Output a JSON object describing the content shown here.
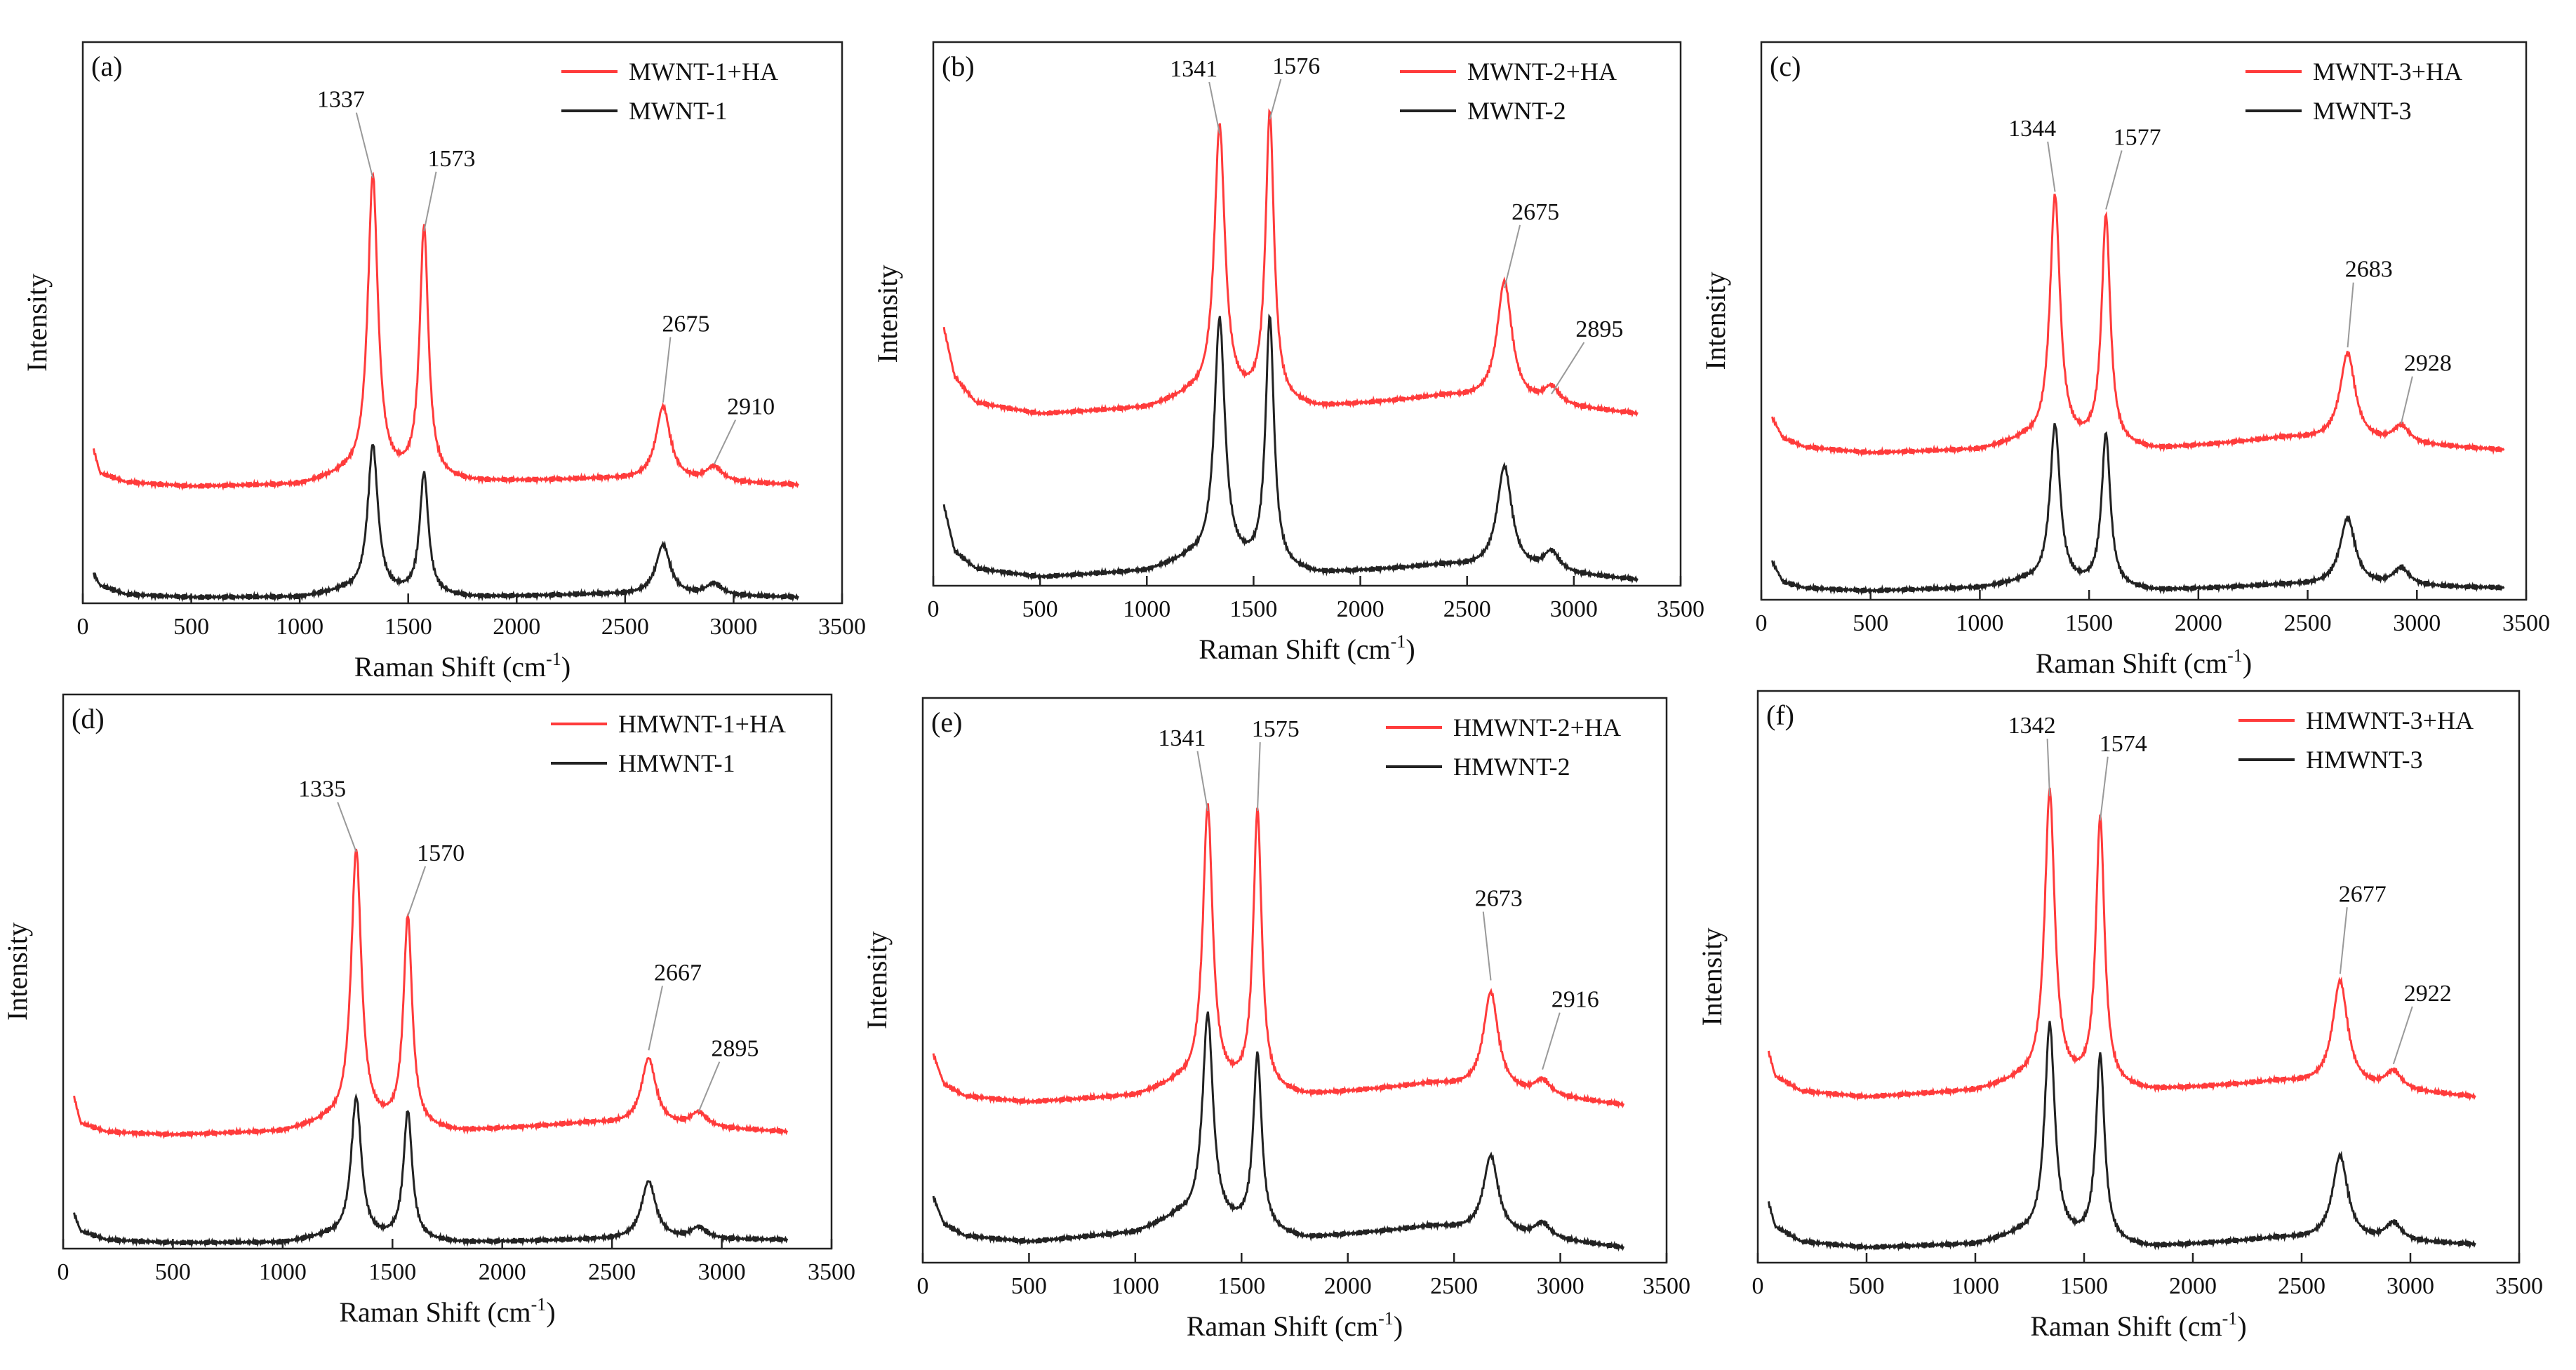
{
  "colors": {
    "axis": "#222222",
    "ha_line": "#ff3b3b",
    "base_line": "#222222",
    "leader": "#999999"
  },
  "chart_data": [
    {
      "type": "line",
      "panel_label": "(a)",
      "xlabel": "Raman Shift (cm",
      "xlabel_sup": "-1",
      "xlabel_close": ")",
      "ylabel": "Intensity",
      "xlim": [
        0,
        3500
      ],
      "xticks": [
        0,
        500,
        1000,
        1500,
        2000,
        2500,
        3000,
        3500
      ],
      "x_range": [
        50,
        3300
      ],
      "series": [
        {
          "name": "MWNT-1+HA",
          "role": "ha",
          "baseline": [
            [
              50,
              0.52
            ],
            [
              80,
              0.44
            ],
            [
              200,
              0.41
            ],
            [
              500,
              0.395
            ],
            [
              1000,
              0.4
            ],
            [
              1200,
              0.43
            ],
            [
              1800,
              0.41
            ],
            [
              2400,
              0.42
            ],
            [
              3300,
              0.4
            ]
          ],
          "peaks": [
            {
              "x": 1337,
              "h": 1.02,
              "w": 28
            },
            {
              "x": 1573,
              "h": 0.85,
              "w": 24
            },
            {
              "x": 2675,
              "h": 0.25,
              "w": 40
            },
            {
              "x": 2910,
              "h": 0.05,
              "w": 45
            }
          ]
        },
        {
          "name": "MWNT-1",
          "role": "base",
          "baseline": [
            [
              50,
              0.1
            ],
            [
              80,
              0.06
            ],
            [
              200,
              0.03
            ],
            [
              500,
              0.02
            ],
            [
              1000,
              0.02
            ],
            [
              1200,
              0.04
            ],
            [
              1800,
              0.02
            ],
            [
              2400,
              0.03
            ],
            [
              3300,
              0.02
            ]
          ],
          "peaks": [
            {
              "x": 1337,
              "h": 0.5,
              "w": 28
            },
            {
              "x": 1573,
              "h": 0.41,
              "w": 24
            },
            {
              "x": 2675,
              "h": 0.17,
              "w": 40
            },
            {
              "x": 2910,
              "h": 0.04,
              "w": 45
            }
          ]
        }
      ],
      "annotations": [
        {
          "text": "1337",
          "x": 1337,
          "y": 1.44,
          "tx": 1190,
          "ty": 1.68
        },
        {
          "text": "1573",
          "x": 1573,
          "y": 1.26,
          "tx": 1700,
          "ty": 1.48
        },
        {
          "text": "2675",
          "x": 2675,
          "y": 0.68,
          "tx": 2780,
          "ty": 0.92
        },
        {
          "text": "2910",
          "x": 2910,
          "y": 0.47,
          "tx": 3080,
          "ty": 0.64
        }
      ]
    },
    {
      "type": "line",
      "panel_label": "(b)",
      "xlabel": "Raman Shift (cm",
      "xlabel_sup": "-1",
      "xlabel_close": ")",
      "ylabel": "Intensity",
      "xlim": [
        0,
        3500
      ],
      "xticks": [
        0,
        500,
        1000,
        1500,
        2000,
        2500,
        3000,
        3500
      ],
      "x_range": [
        50,
        3300
      ],
      "series": [
        {
          "name": "MWNT-2+HA",
          "role": "ha",
          "baseline": [
            [
              50,
              0.9
            ],
            [
              100,
              0.73
            ],
            [
              200,
              0.64
            ],
            [
              500,
              0.6
            ],
            [
              1000,
              0.62
            ],
            [
              1200,
              0.66
            ],
            [
              1800,
              0.62
            ],
            [
              2400,
              0.66
            ],
            [
              3300,
              0.6
            ]
          ],
          "peaks": [
            {
              "x": 1341,
              "h": 0.95,
              "w": 30
            },
            {
              "x": 1576,
              "h": 1.01,
              "w": 24
            },
            {
              "x": 2675,
              "h": 0.42,
              "w": 42
            },
            {
              "x": 2895,
              "h": 0.06,
              "w": 45
            }
          ]
        },
        {
          "name": "MWNT-2",
          "role": "base",
          "baseline": [
            [
              50,
              0.28
            ],
            [
              100,
              0.12
            ],
            [
              200,
              0.06
            ],
            [
              500,
              0.03
            ],
            [
              1000,
              0.05
            ],
            [
              1200,
              0.09
            ],
            [
              1800,
              0.04
            ],
            [
              2400,
              0.07
            ],
            [
              3300,
              0.02
            ]
          ],
          "peaks": [
            {
              "x": 1341,
              "h": 0.85,
              "w": 30
            },
            {
              "x": 1576,
              "h": 0.87,
              "w": 24
            },
            {
              "x": 2675,
              "h": 0.36,
              "w": 42
            },
            {
              "x": 2895,
              "h": 0.07,
              "w": 45
            }
          ]
        }
      ],
      "annotations": [
        {
          "text": "1341",
          "x": 1341,
          "y": 1.58,
          "tx": 1220,
          "ty": 1.78
        },
        {
          "text": "1576",
          "x": 1576,
          "y": 1.63,
          "tx": 1700,
          "ty": 1.79
        },
        {
          "text": "2675",
          "x": 2675,
          "y": 1.04,
          "tx": 2820,
          "ty": 1.28
        },
        {
          "text": "2895",
          "x": 2895,
          "y": 0.67,
          "tx": 3120,
          "ty": 0.87
        }
      ]
    },
    {
      "type": "line",
      "panel_label": "(c)",
      "xlabel": "Raman Shift (cm",
      "xlabel_sup": "-1",
      "xlabel_close": ")",
      "ylabel": "Intensity",
      "xlim": [
        0,
        3500
      ],
      "xticks": [
        0,
        500,
        1000,
        1500,
        2000,
        2500,
        3000,
        3500
      ],
      "x_range": [
        50,
        3400
      ],
      "series": [
        {
          "name": "MWNT-3+HA",
          "role": "ha",
          "baseline": [
            [
              50,
              0.62
            ],
            [
              100,
              0.55
            ],
            [
              200,
              0.52
            ],
            [
              500,
              0.5
            ],
            [
              1000,
              0.51
            ],
            [
              1200,
              0.54
            ],
            [
              1800,
              0.51
            ],
            [
              2400,
              0.55
            ],
            [
              3400,
              0.51
            ]
          ],
          "peaks": [
            {
              "x": 1344,
              "h": 0.84,
              "w": 28
            },
            {
              "x": 1577,
              "h": 0.78,
              "w": 24
            },
            {
              "x": 2683,
              "h": 0.3,
              "w": 42
            },
            {
              "x": 2928,
              "h": 0.06,
              "w": 45
            }
          ]
        },
        {
          "name": "MWNT-3",
          "role": "base",
          "baseline": [
            [
              50,
              0.13
            ],
            [
              100,
              0.06
            ],
            [
              200,
              0.04
            ],
            [
              500,
              0.03
            ],
            [
              1000,
              0.04
            ],
            [
              1200,
              0.06
            ],
            [
              1800,
              0.03
            ],
            [
              2400,
              0.05
            ],
            [
              3400,
              0.04
            ]
          ],
          "peaks": [
            {
              "x": 1344,
              "h": 0.54,
              "w": 28
            },
            {
              "x": 1577,
              "h": 0.52,
              "w": 24
            },
            {
              "x": 2683,
              "h": 0.23,
              "w": 42
            },
            {
              "x": 2928,
              "h": 0.06,
              "w": 45
            }
          ]
        }
      ],
      "annotations": [
        {
          "text": "1344",
          "x": 1344,
          "y": 1.39,
          "tx": 1240,
          "ty": 1.58
        },
        {
          "text": "1577",
          "x": 1577,
          "y": 1.33,
          "tx": 1720,
          "ty": 1.55
        },
        {
          "text": "2683",
          "x": 2683,
          "y": 0.86,
          "tx": 2780,
          "ty": 1.1
        },
        {
          "text": "2928",
          "x": 2928,
          "y": 0.6,
          "tx": 3050,
          "ty": 0.78
        }
      ]
    },
    {
      "type": "line",
      "panel_label": "(d)",
      "xlabel": "Raman Shift (cm",
      "xlabel_sup": "-1",
      "xlabel_close": ")",
      "ylabel": "Intensity",
      "xlim": [
        0,
        3500
      ],
      "xticks": [
        0,
        500,
        1000,
        1500,
        2000,
        2500,
        3000,
        3500
      ],
      "x_range": [
        50,
        3300
      ],
      "series": [
        {
          "name": "HMWNT-1+HA",
          "role": "ha",
          "baseline": [
            [
              50,
              0.52
            ],
            [
              80,
              0.43
            ],
            [
              200,
              0.4
            ],
            [
              500,
              0.39
            ],
            [
              1000,
              0.4
            ],
            [
              1200,
              0.43
            ],
            [
              1800,
              0.4
            ],
            [
              2400,
              0.43
            ],
            [
              3300,
              0.4
            ]
          ],
          "peaks": [
            {
              "x": 1335,
              "h": 0.94,
              "w": 28
            },
            {
              "x": 1570,
              "h": 0.72,
              "w": 24
            },
            {
              "x": 2667,
              "h": 0.23,
              "w": 40
            },
            {
              "x": 2895,
              "h": 0.05,
              "w": 45
            }
          ]
        },
        {
          "name": "HMWNT-1",
          "role": "base",
          "baseline": [
            [
              50,
              0.12
            ],
            [
              80,
              0.06
            ],
            [
              200,
              0.03
            ],
            [
              500,
              0.02
            ],
            [
              1000,
              0.02
            ],
            [
              1200,
              0.04
            ],
            [
              1800,
              0.02
            ],
            [
              2400,
              0.03
            ],
            [
              3300,
              0.03
            ]
          ],
          "peaks": [
            {
              "x": 1335,
              "h": 0.48,
              "w": 28
            },
            {
              "x": 1570,
              "h": 0.44,
              "w": 24
            },
            {
              "x": 2667,
              "h": 0.2,
              "w": 40
            },
            {
              "x": 2895,
              "h": 0.04,
              "w": 45
            }
          ]
        }
      ],
      "annotations": [
        {
          "text": "1335",
          "x": 1335,
          "y": 1.36,
          "tx": 1180,
          "ty": 1.55
        },
        {
          "text": "1570",
          "x": 1570,
          "y": 1.14,
          "tx": 1720,
          "ty": 1.33
        },
        {
          "text": "2667",
          "x": 2667,
          "y": 0.68,
          "tx": 2800,
          "ty": 0.92
        },
        {
          "text": "2895",
          "x": 2895,
          "y": 0.47,
          "tx": 3060,
          "ty": 0.66
        }
      ]
    },
    {
      "type": "line",
      "panel_label": "(e)",
      "xlabel": "Raman Shift (cm",
      "xlabel_sup": "-1",
      "xlabel_close": ")",
      "ylabel": "Intensity",
      "xlim": [
        0,
        3500
      ],
      "xticks": [
        0,
        500,
        1000,
        1500,
        2000,
        2500,
        3000,
        3500
      ],
      "x_range": [
        50,
        3300
      ],
      "series": [
        {
          "name": "HMWNT-2+HA",
          "role": "ha",
          "baseline": [
            [
              50,
              0.7
            ],
            [
              100,
              0.6
            ],
            [
              200,
              0.56
            ],
            [
              500,
              0.54
            ],
            [
              1000,
              0.56
            ],
            [
              1200,
              0.6
            ],
            [
              1800,
              0.56
            ],
            [
              2400,
              0.6
            ],
            [
              3300,
              0.53
            ]
          ],
          "peaks": [
            {
              "x": 1341,
              "h": 0.94,
              "w": 28
            },
            {
              "x": 1575,
              "h": 0.94,
              "w": 24
            },
            {
              "x": 2673,
              "h": 0.33,
              "w": 42
            },
            {
              "x": 2916,
              "h": 0.05,
              "w": 45
            }
          ]
        },
        {
          "name": "HMWNT-2",
          "role": "base",
          "baseline": [
            [
              50,
              0.22
            ],
            [
              100,
              0.13
            ],
            [
              200,
              0.09
            ],
            [
              500,
              0.07
            ],
            [
              1000,
              0.1
            ],
            [
              1200,
              0.15
            ],
            [
              1800,
              0.08
            ],
            [
              2400,
              0.12
            ],
            [
              3300,
              0.05
            ]
          ],
          "peaks": [
            {
              "x": 1341,
              "h": 0.7,
              "w": 30
            },
            {
              "x": 1575,
              "h": 0.59,
              "w": 24
            },
            {
              "x": 2673,
              "h": 0.26,
              "w": 42
            },
            {
              "x": 2916,
              "h": 0.05,
              "w": 45
            }
          ]
        }
      ],
      "annotations": [
        {
          "text": "1341",
          "x": 1341,
          "y": 1.52,
          "tx": 1220,
          "ty": 1.74
        },
        {
          "text": "1575",
          "x": 1575,
          "y": 1.52,
          "tx": 1660,
          "ty": 1.77
        },
        {
          "text": "2673",
          "x": 2673,
          "y": 0.95,
          "tx": 2710,
          "ty": 1.2
        },
        {
          "text": "2916",
          "x": 2916,
          "y": 0.65,
          "tx": 3070,
          "ty": 0.86
        }
      ]
    },
    {
      "type": "line",
      "panel_label": "(f)",
      "xlabel": "Raman Shift (cm",
      "xlabel_sup": "-1",
      "xlabel_close": ")",
      "ylabel": "Intensity",
      "xlim": [
        0,
        3500
      ],
      "xticks": [
        0,
        500,
        1000,
        1500,
        2000,
        2500,
        3000,
        3500
      ],
      "x_range": [
        50,
        3300
      ],
      "series": [
        {
          "name": "HMWNT-3+HA",
          "role": "ha",
          "baseline": [
            [
              50,
              0.7
            ],
            [
              80,
              0.62
            ],
            [
              200,
              0.57
            ],
            [
              500,
              0.55
            ],
            [
              1000,
              0.57
            ],
            [
              1200,
              0.6
            ],
            [
              1800,
              0.57
            ],
            [
              2400,
              0.6
            ],
            [
              3300,
              0.55
            ]
          ],
          "peaks": [
            {
              "x": 1342,
              "h": 0.97,
              "w": 28
            },
            {
              "x": 1574,
              "h": 0.89,
              "w": 24
            },
            {
              "x": 2677,
              "h": 0.35,
              "w": 42
            },
            {
              "x": 2922,
              "h": 0.06,
              "w": 45
            }
          ]
        },
        {
          "name": "HMWNT-3",
          "role": "base",
          "baseline": [
            [
              50,
              0.2
            ],
            [
              80,
              0.12
            ],
            [
              200,
              0.07
            ],
            [
              500,
              0.05
            ],
            [
              1000,
              0.06
            ],
            [
              1200,
              0.09
            ],
            [
              1800,
              0.05
            ],
            [
              2400,
              0.08
            ],
            [
              3300,
              0.06
            ]
          ],
          "peaks": [
            {
              "x": 1342,
              "h": 0.71,
              "w": 28
            },
            {
              "x": 1574,
              "h": 0.62,
              "w": 24
            },
            {
              "x": 2677,
              "h": 0.28,
              "w": 42
            },
            {
              "x": 2922,
              "h": 0.06,
              "w": 45
            }
          ]
        }
      ],
      "annotations": [
        {
          "text": "1342",
          "x": 1342,
          "y": 1.55,
          "tx": 1260,
          "ty": 1.76
        },
        {
          "text": "1574",
          "x": 1574,
          "y": 1.47,
          "tx": 1680,
          "ty": 1.7
        },
        {
          "text": "2677",
          "x": 2677,
          "y": 0.96,
          "tx": 2780,
          "ty": 1.2
        },
        {
          "text": "2922",
          "x": 2922,
          "y": 0.66,
          "tx": 3080,
          "ty": 0.87
        }
      ]
    }
  ]
}
